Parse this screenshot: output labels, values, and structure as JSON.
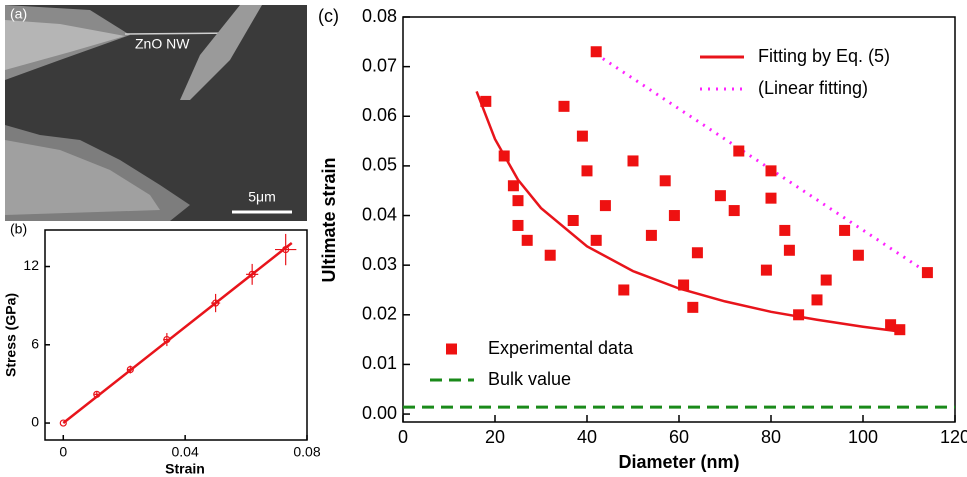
{
  "image_panel": {
    "label": "(a)",
    "annotation": "ZnO NW",
    "scale_bar": "5μm"
  },
  "chart_data": [
    {
      "type": "scatter",
      "panel_label": "(b)",
      "x_label": "Strain",
      "y_label": "Stress (GPa)",
      "xlim": [
        -0.006,
        0.08
      ],
      "ylim": [
        -1.3,
        14.8
      ],
      "xticks": [
        0,
        0.04,
        0.08
      ],
      "yticks": [
        0,
        6,
        12
      ],
      "series": [
        {
          "kind": "points",
          "marker": "open-circle",
          "color": "#e8141b",
          "x": [
            0,
            0.011,
            0.022,
            0.034,
            0.05,
            0.062,
            0.073
          ],
          "values": [
            0,
            2.2,
            4.1,
            6.4,
            9.2,
            11.4,
            13.3
          ],
          "x_errors": [
            0,
            0.0008,
            0.001,
            0.0012,
            0.0015,
            0.002,
            0.0035
          ],
          "y_errors": [
            0,
            0.2,
            0.3,
            0.5,
            0.7,
            0.8,
            1.2
          ]
        },
        {
          "kind": "line",
          "style": "solid",
          "color": "#e8141b",
          "x": [
            0,
            0.075
          ],
          "values": [
            0,
            13.8
          ]
        }
      ]
    },
    {
      "type": "scatter",
      "panel_label": "(c)",
      "x_label": "Diameter (nm)",
      "y_label": "Ultimate strain",
      "xlim": [
        0,
        120
      ],
      "ylim": [
        -0.0016,
        0.08
      ],
      "xticks": [
        0,
        20,
        40,
        60,
        80,
        100,
        120
      ],
      "yticks": [
        {
          "value": 0,
          "label": "0.00"
        },
        {
          "value": 0.01,
          "label": "0.01"
        },
        {
          "value": 0.02,
          "label": "0.02"
        },
        {
          "value": 0.03,
          "label": "0.03"
        },
        {
          "value": 0.04,
          "label": "0.04"
        },
        {
          "value": 0.05,
          "label": "0.05"
        },
        {
          "value": 0.06,
          "label": "0.06"
        },
        {
          "value": 0.07,
          "label": "0.07"
        },
        {
          "value": 0.08,
          "label": "0.08"
        }
      ],
      "series": [
        {
          "name": "Fitting by Eq. (5)",
          "kind": "line",
          "style": "solid",
          "color": "#e8141b",
          "x": [
            16,
            20,
            25,
            30,
            40,
            50,
            60,
            70,
            80,
            90,
            100,
            109
          ],
          "values": [
            0.065,
            0.0554,
            0.0472,
            0.0415,
            0.0338,
            0.0288,
            0.0253,
            0.0227,
            0.0206,
            0.019,
            0.0176,
            0.0165
          ]
        },
        {
          "name": "(Linear fitting)",
          "kind": "line",
          "style": "dotted",
          "color": "#ff22ff",
          "x": [
            42,
            114
          ],
          "values": [
            0.0725,
            0.0285
          ]
        },
        {
          "name": "Experimental data",
          "kind": "points",
          "marker": "square",
          "color": "#ee1111",
          "x": [
            18,
            22,
            24,
            25,
            25,
            27,
            32,
            35,
            37,
            39,
            40,
            42,
            42,
            44,
            48,
            50,
            54,
            57,
            59,
            61,
            63,
            64,
            69,
            72,
            73,
            79,
            80,
            80,
            83,
            84,
            86,
            90,
            92,
            96,
            99,
            106,
            108,
            114
          ],
          "values": [
            0.063,
            0.052,
            0.046,
            0.043,
            0.038,
            0.035,
            0.032,
            0.062,
            0.039,
            0.056,
            0.049,
            0.073,
            0.035,
            0.042,
            0.025,
            0.051,
            0.036,
            0.047,
            0.04,
            0.026,
            0.0215,
            0.0325,
            0.044,
            0.041,
            0.053,
            0.029,
            0.0435,
            0.049,
            0.037,
            0.033,
            0.02,
            0.023,
            0.027,
            0.037,
            0.032,
            0.018,
            0.017,
            0.0285
          ]
        },
        {
          "name": "Bulk value",
          "kind": "line",
          "style": "dashed",
          "color": "#1a8a1a",
          "x": [
            0,
            120
          ],
          "values": [
            0.0014,
            0.0014
          ]
        }
      ]
    }
  ]
}
